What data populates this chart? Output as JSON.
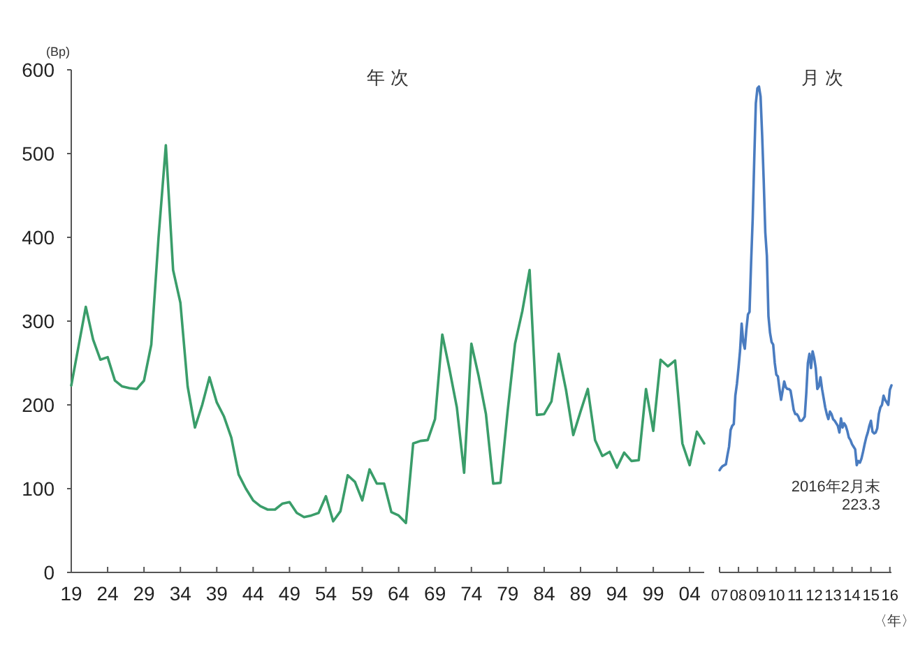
{
  "chart_data": [
    {
      "type": "line",
      "title": "年 次",
      "ylabel": "(Bp)",
      "x": [
        1919,
        1920,
        1921,
        1922,
        1923,
        1924,
        1925,
        1926,
        1927,
        1928,
        1929,
        1930,
        1931,
        1932,
        1933,
        1934,
        1935,
        1936,
        1937,
        1938,
        1939,
        1940,
        1941,
        1942,
        1943,
        1944,
        1945,
        1946,
        1947,
        1948,
        1949,
        1950,
        1951,
        1952,
        1953,
        1954,
        1955,
        1956,
        1957,
        1958,
        1959,
        1960,
        1961,
        1962,
        1963,
        1964,
        1965,
        1966,
        1967,
        1968,
        1969,
        1970,
        1971,
        1972,
        1973,
        1974,
        1975,
        1976,
        1977,
        1978,
        1979,
        1980,
        1981,
        1982,
        1983,
        1984,
        1985,
        1986,
        1987,
        1988,
        1989,
        1990,
        1991,
        1992,
        1993,
        1994,
        1995,
        1996,
        1997,
        1998,
        1999,
        2000,
        2001,
        2002,
        2003,
        2004,
        2005,
        2006
      ],
      "series": [
        {
          "color": "#3a9d6a",
          "values": [
            223,
            270,
            317,
            278,
            254,
            257,
            229,
            222,
            220,
            219,
            229,
            272,
            400,
            510,
            361,
            322,
            222,
            173,
            200,
            233,
            203,
            186,
            161,
            117,
            100,
            86,
            79,
            75,
            75,
            82,
            84,
            71,
            66,
            68,
            71,
            91,
            61,
            73,
            116,
            108,
            86,
            123,
            106,
            106,
            72,
            68,
            59,
            154,
            157,
            158,
            183,
            284,
            242,
            197,
            119,
            273,
            234,
            189,
            106,
            107,
            194,
            273,
            312,
            361,
            188,
            189,
            204,
            261,
            218,
            164,
            192,
            219,
            158,
            139,
            144,
            125,
            143,
            133,
            134,
            219,
            169,
            254,
            246,
            253,
            154,
            128,
            168,
            154
          ]
        }
      ],
      "xlim": [
        1919,
        2006
      ],
      "ylim": [
        0,
        600
      ],
      "xticks": [
        {
          "value": 1919,
          "label": "19"
        },
        {
          "value": 1924,
          "label": "24"
        },
        {
          "value": 1929,
          "label": "29"
        },
        {
          "value": 1934,
          "label": "34"
        },
        {
          "value": 1939,
          "label": "39"
        },
        {
          "value": 1944,
          "label": "44"
        },
        {
          "value": 1949,
          "label": "49"
        },
        {
          "value": 1954,
          "label": "54"
        },
        {
          "value": 1959,
          "label": "59"
        },
        {
          "value": 1964,
          "label": "64"
        },
        {
          "value": 1969,
          "label": "69"
        },
        {
          "value": 1974,
          "label": "74"
        },
        {
          "value": 1979,
          "label": "79"
        },
        {
          "value": 1984,
          "label": "84"
        },
        {
          "value": 1989,
          "label": "89"
        },
        {
          "value": 1994,
          "label": "94"
        },
        {
          "value": 1999,
          "label": "99"
        },
        {
          "value": 2004,
          "label": "04"
        }
      ],
      "yticks": [
        0,
        100,
        200,
        300,
        400,
        500,
        600
      ]
    },
    {
      "type": "line",
      "title": "月 次",
      "xlabel": "〈年〉",
      "x": [
        "2007-01",
        "2007-02",
        "2007-03",
        "2007-04",
        "2007-05",
        "2007-06",
        "2007-07",
        "2007-08",
        "2007-09",
        "2007-10",
        "2007-11",
        "2007-12",
        "2008-01",
        "2008-02",
        "2008-03",
        "2008-04",
        "2008-05",
        "2008-06",
        "2008-07",
        "2008-08",
        "2008-09",
        "2008-10",
        "2008-11",
        "2008-12",
        "2009-01",
        "2009-02",
        "2009-03",
        "2009-04",
        "2009-05",
        "2009-06",
        "2009-07",
        "2009-08",
        "2009-09",
        "2009-10",
        "2009-11",
        "2009-12",
        "2010-01",
        "2010-02",
        "2010-03",
        "2010-04",
        "2010-05",
        "2010-06",
        "2010-07",
        "2010-08",
        "2010-09",
        "2010-10",
        "2010-11",
        "2010-12",
        "2011-01",
        "2011-02",
        "2011-03",
        "2011-04",
        "2011-05",
        "2011-06",
        "2011-07",
        "2011-08",
        "2011-09",
        "2011-10",
        "2011-11",
        "2011-12",
        "2012-01",
        "2012-02",
        "2012-03",
        "2012-04",
        "2012-05",
        "2012-06",
        "2012-07",
        "2012-08",
        "2012-09",
        "2012-10",
        "2012-11",
        "2012-12",
        "2013-01",
        "2013-02",
        "2013-03",
        "2013-04",
        "2013-05",
        "2013-06",
        "2013-07",
        "2013-08",
        "2013-09",
        "2013-10",
        "2013-11",
        "2013-12",
        "2014-01",
        "2014-02",
        "2014-03",
        "2014-04",
        "2014-05",
        "2014-06",
        "2014-07",
        "2014-08",
        "2014-09",
        "2014-10",
        "2014-11",
        "2014-12",
        "2015-01",
        "2015-02",
        "2015-03",
        "2015-04",
        "2015-05",
        "2015-06",
        "2015-07",
        "2015-08",
        "2015-09",
        "2015-10",
        "2015-11",
        "2015-12",
        "2016-01",
        "2016-02"
      ],
      "series": [
        {
          "color": "#4a7cc0",
          "values": [
            122,
            125,
            127,
            128,
            129,
            140,
            150,
            170,
            175,
            177,
            211,
            225,
            244,
            265,
            297,
            275,
            267,
            290,
            308,
            311,
            370,
            422,
            494,
            560,
            578,
            580,
            568,
            522,
            467,
            406,
            378,
            306,
            286,
            275,
            272,
            250,
            236,
            234,
            219,
            206,
            217,
            228,
            221,
            219,
            219,
            217,
            206,
            194,
            189,
            189,
            186,
            181,
            181,
            183,
            186,
            214,
            250,
            261,
            244,
            264,
            256,
            244,
            219,
            222,
            233,
            219,
            208,
            197,
            189,
            183,
            192,
            189,
            183,
            181,
            178,
            175,
            167,
            184,
            173,
            178,
            175,
            169,
            161,
            158,
            153,
            150,
            147,
            128,
            133,
            131,
            136,
            144,
            153,
            161,
            167,
            175,
            181,
            168,
            166,
            167,
            172,
            189,
            197,
            200,
            211,
            206,
            203,
            200,
            218,
            223.3
          ]
        }
      ],
      "xlim": [
        "2007-01",
        "2016-02"
      ],
      "ylim": [
        0,
        600
      ],
      "tick_labels": "x",
      "xticks": [
        {
          "value": "2007-01",
          "label": "07"
        },
        {
          "value": "2008-01",
          "label": "08"
        },
        {
          "value": "2009-01",
          "label": "09"
        },
        {
          "value": "2010-01",
          "label": "10"
        },
        {
          "value": "2011-01",
          "label": "11"
        },
        {
          "value": "2012-01",
          "label": "12"
        },
        {
          "value": "2013-01",
          "label": "13"
        },
        {
          "value": "2014-01",
          "label": "14"
        },
        {
          "value": "2015-01",
          "label": "15"
        },
        {
          "value": "2016-01",
          "label": "16"
        }
      ],
      "annotations": [
        "2016年2月末\n223.3"
      ]
    }
  ]
}
